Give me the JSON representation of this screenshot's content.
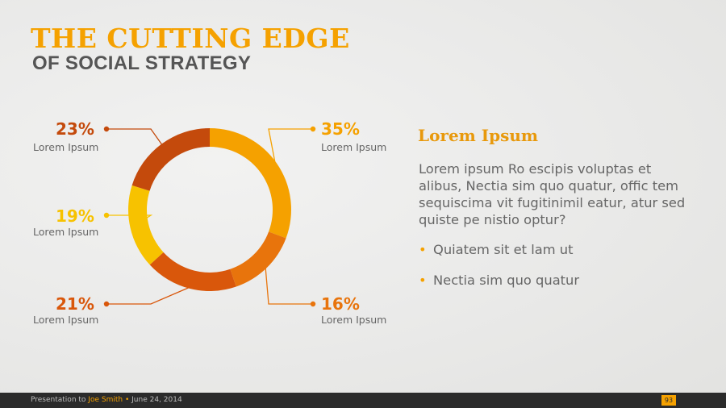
{
  "header": {
    "title": "THE CUTTING EDGE",
    "subtitle": "OF SOCIAL STRATEGY"
  },
  "chart_data": {
    "type": "pie",
    "variant": "donut",
    "title": "",
    "categories": [
      "Lorem Ipsum",
      "Lorem Ipsum",
      "Lorem Ipsum",
      "Lorem Ipsum",
      "Lorem Ipsum"
    ],
    "values": [
      35,
      16,
      21,
      19,
      23
    ],
    "labels": [
      "35%",
      "16%",
      "21%",
      "19%",
      "23%"
    ],
    "colors": [
      "#f5a100",
      "#e8740c",
      "#d9570b",
      "#f7c200",
      "#c44a0c"
    ],
    "legend": "none",
    "start_angle": "top, clockwise"
  },
  "panel": {
    "heading": "Lorem Ipsum",
    "body": "Lorem ipsum Ro escipis voluptas et alibus, Nectia sim quo quatur, offic tem sequiscima vit fugitinimil eatur, atur sed quiste pe nistio optur?",
    "bullets": [
      "Quiatem sit et lam ut",
      "Nectia sim quo quatur"
    ]
  },
  "footer": {
    "prefix": "Presentation to",
    "name": "Joe Smith",
    "separator": "•",
    "date": "June 24, 2014",
    "page": "93"
  }
}
